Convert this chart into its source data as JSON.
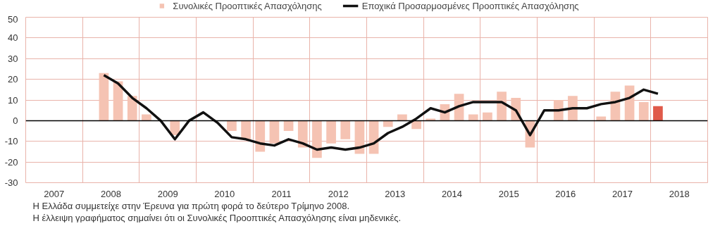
{
  "chart_data": {
    "type": "bar",
    "x": [
      2008.375,
      2008.625,
      2008.875,
      2009.125,
      2009.375,
      2009.625,
      2009.875,
      2010.125,
      2010.375,
      2010.625,
      2010.875,
      2011.125,
      2011.375,
      2011.625,
      2011.875,
      2012.125,
      2012.375,
      2012.625,
      2012.875,
      2013.125,
      2013.375,
      2013.625,
      2013.875,
      2014.125,
      2014.375,
      2014.625,
      2014.875,
      2015.125,
      2015.375,
      2015.625,
      2015.875,
      2016.125,
      2016.375,
      2016.625,
      2016.875,
      2017.125,
      2017.375,
      2017.625,
      2017.875,
      2018.125
    ],
    "series": [
      {
        "name": "Συνολικές Προοπτικές Απασχόλησης",
        "colors": [
          "#f5c3b3",
          "#f5c3b3",
          "#f5c3b3",
          "#f5c3b3",
          "#f5c3b3",
          "#f5c3b3",
          "#f5c3b3",
          "#f5c3b3",
          "#f5c3b3",
          "#f5c3b3",
          "#f5c3b3",
          "#f5c3b3",
          "#f5c3b3",
          "#f5c3b3",
          "#f5c3b3",
          "#f5c3b3",
          "#f5c3b3",
          "#f5c3b3",
          "#f5c3b3",
          "#f5c3b3",
          "#f5c3b3",
          "#f5c3b3",
          "#f5c3b3",
          "#f5c3b3",
          "#f5c3b3",
          "#f5c3b3",
          "#f5c3b3",
          "#f5c3b3",
          "#f5c3b3",
          "#f5c3b3",
          "#f5c3b3",
          "#f5c3b3",
          "#f5c3b3",
          "#f5c3b3",
          "#f5c3b3",
          "#f5c3b3",
          "#f5c3b3",
          "#f5c3b3",
          "#f5c3b3",
          "#e05a4a"
        ],
        "color": "#f5c3b3",
        "values": [
          23,
          19,
          12,
          3,
          0,
          -7,
          0,
          0,
          0,
          -5,
          -9,
          -15,
          -11,
          -5,
          -13,
          -18,
          -11,
          -9,
          -16,
          -16,
          -3,
          3,
          -4,
          1,
          8,
          13,
          3,
          4,
          14,
          11,
          -13,
          0,
          10,
          12,
          0,
          2,
          14,
          17,
          9,
          7
        ]
      },
      {
        "name": "Εποχικά Προσαρμοσμένες Προοπτικές Απασχόλησης",
        "type": "line",
        "color": "#111111",
        "values": [
          22,
          18,
          11,
          6,
          0,
          -9,
          0,
          4,
          -1,
          -8,
          -9,
          -11,
          -12,
          -9,
          -11,
          -14,
          -13,
          -14,
          -13,
          -11,
          -6,
          -3,
          1,
          6,
          4,
          7,
          9,
          9,
          9,
          5,
          -7,
          5,
          5,
          6,
          6,
          8,
          9,
          11,
          15,
          13
        ]
      }
    ],
    "xlim": [
      2007,
      2019
    ],
    "xticks": [
      {
        "value": 2007.5,
        "label": "2007"
      },
      {
        "value": 2008,
        "label": null
      },
      {
        "value": 2008.5,
        "label": "2008"
      },
      {
        "value": 2009,
        "label": null
      },
      {
        "value": 2009.5,
        "label": "2009"
      },
      {
        "value": 2010,
        "label": null
      },
      {
        "value": 2010.5,
        "label": "2010"
      },
      {
        "value": 2011,
        "label": null
      },
      {
        "value": 2011.5,
        "label": "2011"
      },
      {
        "value": 2012,
        "label": null
      },
      {
        "value": 2012.5,
        "label": "2012"
      },
      {
        "value": 2013,
        "label": null
      },
      {
        "value": 2013.5,
        "label": "2013"
      },
      {
        "value": 2014,
        "label": null
      },
      {
        "value": 2014.5,
        "label": "2014"
      },
      {
        "value": 2015,
        "label": null
      },
      {
        "value": 2015.5,
        "label": "2015"
      },
      {
        "value": 2016,
        "label": null
      },
      {
        "value": 2016.5,
        "label": "2016"
      },
      {
        "value": 2017,
        "label": null
      },
      {
        "value": 2017.5,
        "label": "2017"
      },
      {
        "value": 2018,
        "label": null
      },
      {
        "value": 2018.5,
        "label": "2018"
      }
    ],
    "ylim": [
      -30,
      50
    ],
    "yticks": [
      -30,
      -20,
      -10,
      0,
      10,
      20,
      30,
      40,
      50
    ],
    "ref_lines": [
      {
        "axis": "y",
        "value": 0,
        "label": null,
        "color": "#000000"
      }
    ],
    "grid": true,
    "legend": "top",
    "annotations": [
      "Η Ελλάδα συμμετείχε στην Έρευνα για πρώτη φορά το δεύτερο Τρίμηνο 2008.",
      "Η έλλειψη γραφήματος σημαίνει ότι οι Συνολικές Προοπτικές Απασχόλησης είναι μηδενικές."
    ]
  }
}
